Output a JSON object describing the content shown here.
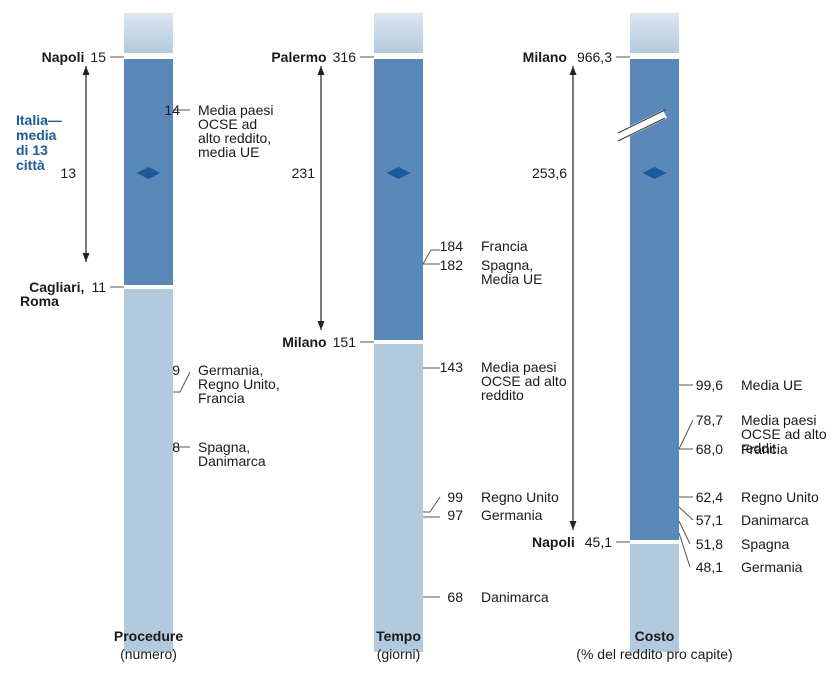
{
  "colors": {
    "dark_bar": "#5a88b8",
    "light_bar": "#b3c9de",
    "top_fade_start": "#dde7f0",
    "top_fade_end": "#b3c9de",
    "marker": "#1b5b9a",
    "italia_text": "#1b5b9a",
    "line": "#555555"
  },
  "italia_label": [
    "Italia—",
    "media",
    "di 13",
    "città"
  ],
  "chart_data": [
    {
      "type": "range-bar",
      "key": "procedure",
      "title": "Procedure",
      "subtitle": "(numero)",
      "max": {
        "value": "15",
        "city": [
          "Napoli"
        ]
      },
      "min": {
        "value": "11",
        "city": [
          "Cagliari,",
          "Roma"
        ]
      },
      "italia": {
        "value": "13"
      },
      "benchmarks": [
        {
          "value": "14",
          "label": [
            "Media paesi",
            "OCSE ad",
            "alto reddito,",
            "media UE"
          ]
        },
        {
          "value": "9",
          "label": [
            "Germania,",
            "Regno Unito,",
            "Francia"
          ]
        },
        {
          "value": "8",
          "label": [
            "Spagna,",
            "Danimarca"
          ]
        }
      ]
    },
    {
      "type": "range-bar",
      "key": "tempo",
      "title": "Tempo",
      "subtitle": "(giorni)",
      "max": {
        "value": "316",
        "city": [
          "Palermo"
        ]
      },
      "min": {
        "value": "151",
        "city": [
          "Milano"
        ]
      },
      "italia": {
        "value": "231"
      },
      "benchmarks": [
        {
          "value": "184",
          "label": [
            "Francia"
          ]
        },
        {
          "value": "182",
          "label": [
            "Spagna,",
            "Media UE"
          ]
        },
        {
          "value": "143",
          "label": [
            "Media paesi",
            "OCSE ad alto",
            "reddito"
          ]
        },
        {
          "value": "99",
          "label": [
            "Regno Unito"
          ]
        },
        {
          "value": "97",
          "label": [
            "Germania"
          ]
        },
        {
          "value": "68",
          "label": [
            "Danimarca"
          ]
        }
      ]
    },
    {
      "type": "range-bar",
      "key": "costo",
      "title": "Costo",
      "subtitle": "(% del reddito pro capite)",
      "axis_break": true,
      "max": {
        "value": "966,3",
        "city": [
          "Milano"
        ]
      },
      "min": {
        "value": "45,1",
        "city": [
          "Napoli"
        ]
      },
      "italia": {
        "value": "253,6"
      },
      "benchmarks": [
        {
          "value": "99,6",
          "label": [
            "Media UE"
          ]
        },
        {
          "value": "78,7",
          "label": [
            "Media paesi",
            "OCSE ad alto",
            "reddit"
          ]
        },
        {
          "value": "68,0",
          "label": [
            "Francia"
          ]
        },
        {
          "value": "62,4",
          "label": [
            "Regno Unito"
          ]
        },
        {
          "value": "57,1",
          "label": [
            "Danimarca"
          ]
        },
        {
          "value": "51,8",
          "label": [
            "Spagna"
          ]
        },
        {
          "value": "48,1",
          "label": [
            "Germania"
          ]
        }
      ]
    }
  ]
}
